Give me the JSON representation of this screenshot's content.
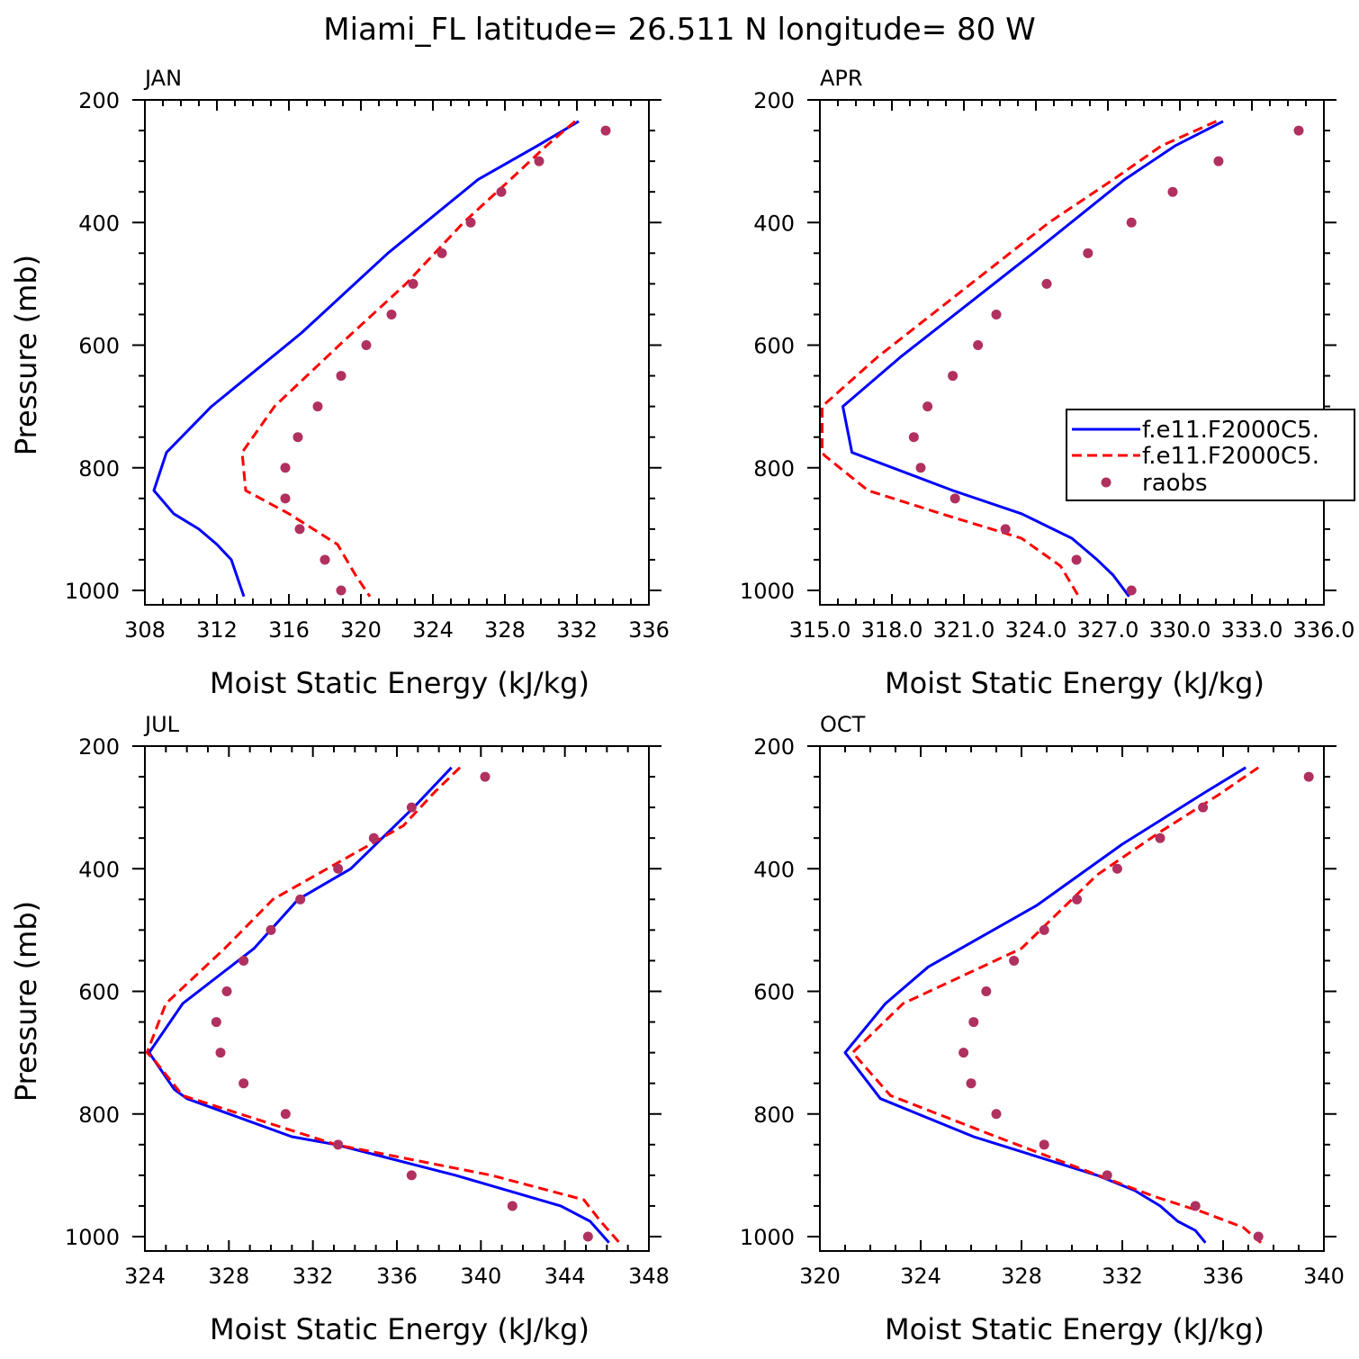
{
  "figure": {
    "title": "Miami_FL  latitude= 26.511 N longitude= 80 W"
  },
  "colors": {
    "model_a": "#0000ff",
    "model_b": "#ff0000",
    "raobs": "#b03060"
  },
  "chart_data": [
    {
      "type": "line",
      "panel": "JAN",
      "xlabel": "Moist Static Energy (kJ/kg)",
      "ylabel": "Pressure (mb)",
      "xlim": [
        308,
        336
      ],
      "xticks": [
        "308",
        "312",
        "316",
        "320",
        "324",
        "328",
        "332",
        "336"
      ],
      "ylim": [
        1000,
        200
      ],
      "yticks": [
        "200",
        "400",
        "600",
        "800",
        "1000"
      ],
      "series": [
        {
          "style": "solid",
          "x": [
            332.1,
            329.8,
            326.5,
            321.5,
            316.7,
            311.7,
            309.2,
            308.5,
            309.6,
            311.0,
            312.0,
            312.8,
            313.5
          ],
          "y": [
            235,
            275,
            330,
            450,
            580,
            700,
            775,
            837,
            875,
            900,
            925,
            950,
            1010
          ]
        },
        {
          "style": "dashed",
          "x": [
            331.9,
            330.3,
            328.3,
            325.7,
            322.5,
            318.8,
            315.2,
            314.0,
            313.4,
            313.6,
            316.0,
            318.7,
            319.7,
            320.5
          ],
          "y": [
            235,
            275,
            330,
            400,
            500,
            600,
            700,
            750,
            775,
            837,
            875,
            925,
            975,
            1010
          ]
        },
        {
          "style": "markers",
          "x": [
            333.6,
            329.9,
            327.8,
            326.1,
            324.5,
            322.9,
            321.7,
            320.3,
            318.9,
            317.6,
            316.5,
            315.8,
            315.8,
            316.6,
            318.0,
            318.9
          ],
          "y": [
            250,
            300,
            350,
            400,
            450,
            500,
            550,
            600,
            650,
            700,
            750,
            800,
            850,
            900,
            950,
            1000
          ]
        }
      ]
    },
    {
      "type": "line",
      "panel": "APR",
      "xlabel": "Moist Static Energy (kJ/kg)",
      "ylabel": "",
      "xlim": [
        315.0,
        337.0
      ],
      "xticks": [
        "315.0",
        "318.0",
        "321.0",
        "324.0",
        "327.0",
        "330.0",
        "333.0",
        "336.0"
      ],
      "ylim": [
        1000,
        200
      ],
      "yticks": [
        "200",
        "400",
        "600",
        "800",
        "1000"
      ],
      "legend": {
        "placement": "right",
        "entries": [
          "f.e11.F2000C5.",
          "f.e11.F2000C5.",
          "raobs"
        ]
      },
      "series": [
        {
          "style": "solid",
          "x": [
            332.6,
            330.5,
            328.3,
            324.3,
            318.5,
            316.0,
            316.4,
            320.8,
            323.8,
            326.0,
            327.1,
            327.8,
            328.5
          ],
          "y": [
            235,
            275,
            330,
            450,
            620,
            700,
            775,
            837,
            875,
            915,
            950,
            975,
            1010
          ]
        },
        {
          "style": "dashed",
          "x": [
            332.3,
            329.9,
            327.8,
            325.0,
            317.5,
            315.1,
            315.1,
            315.2,
            317.1,
            320.3,
            323.8,
            325.5,
            326.3
          ],
          "y": [
            235,
            275,
            330,
            400,
            620,
            700,
            775,
            780,
            837,
            875,
            915,
            960,
            1010
          ]
        },
        {
          "style": "markers",
          "x": [
            335.9,
            332.4,
            330.4,
            328.6,
            326.7,
            324.9,
            322.7,
            321.9,
            320.8,
            319.7,
            319.1,
            319.4,
            320.9,
            323.1,
            326.2,
            328.6
          ],
          "y": [
            250,
            300,
            350,
            400,
            450,
            500,
            550,
            600,
            650,
            700,
            750,
            800,
            850,
            900,
            950,
            1000
          ]
        }
      ]
    },
    {
      "type": "line",
      "panel": "JUL",
      "xlabel": "Moist Static Energy (kJ/kg)",
      "ylabel": "Pressure (mb)",
      "xlim": [
        324,
        348
      ],
      "xticks": [
        "324",
        "328",
        "332",
        "336",
        "340",
        "344",
        "348"
      ],
      "ylim": [
        1000,
        200
      ],
      "yticks": [
        "200",
        "400",
        "600",
        "800",
        "1000"
      ],
      "series": [
        {
          "style": "solid",
          "x": [
            338.6,
            336.8,
            333.8,
            331.3,
            329.2,
            325.8,
            324.2,
            325.4,
            326.0,
            331.0,
            333.1,
            338.8,
            343.8,
            345.2,
            346.1
          ],
          "y": [
            235,
            300,
            400,
            450,
            530,
            620,
            700,
            760,
            775,
            837,
            850,
            900,
            950,
            975,
            1010
          ]
        },
        {
          "style": "dashed",
          "x": [
            339.0,
            337.8,
            336.3,
            333.2,
            330.1,
            327.8,
            325.0,
            324.1,
            324.4,
            325.8,
            333.1,
            340.5,
            344.9,
            345.7,
            346.6
          ],
          "y": [
            235,
            275,
            330,
            390,
            450,
            530,
            620,
            700,
            710,
            770,
            850,
            900,
            940,
            975,
            1010
          ]
        },
        {
          "style": "markers",
          "x": [
            340.2,
            336.7,
            334.9,
            333.2,
            331.4,
            330.0,
            328.7,
            327.9,
            327.4,
            327.6,
            328.7,
            330.7,
            333.2,
            336.7,
            341.5,
            345.1
          ],
          "y": [
            250,
            300,
            350,
            400,
            450,
            500,
            550,
            600,
            650,
            700,
            750,
            800,
            850,
            900,
            950,
            1000
          ]
        }
      ]
    },
    {
      "type": "line",
      "panel": "OCT",
      "xlabel": "Moist Static Energy (kJ/kg)",
      "ylabel": "",
      "xlim": [
        320,
        340
      ],
      "xticks": [
        "320",
        "324",
        "328",
        "332",
        "336",
        "340"
      ],
      "ylim": [
        1000,
        200
      ],
      "yticks": [
        "200",
        "400",
        "600",
        "800",
        "1000"
      ],
      "series": [
        {
          "style": "solid",
          "x": [
            336.9,
            335.3,
            332.0,
            328.6,
            324.3,
            322.6,
            321.0,
            322.4,
            326.1,
            331.0,
            332.5,
            333.5,
            334.2,
            334.9,
            335.3
          ],
          "y": [
            235,
            275,
            360,
            460,
            560,
            620,
            700,
            775,
            837,
            900,
            925,
            950,
            975,
            990,
            1010
          ]
        },
        {
          "style": "dashed",
          "x": [
            337.4,
            335.8,
            333.5,
            331.0,
            328.0,
            323.3,
            321.3,
            322.8,
            327.0,
            330.4,
            333.3,
            335.2,
            336.8,
            337.5
          ],
          "y": [
            235,
            280,
            340,
            410,
            530,
            620,
            700,
            770,
            837,
            890,
            935,
            960,
            985,
            1010
          ]
        },
        {
          "style": "markers",
          "x": [
            339.4,
            335.2,
            333.5,
            331.8,
            330.2,
            328.9,
            327.7,
            326.6,
            326.1,
            325.7,
            326.0,
            327.0,
            328.9,
            331.4,
            334.9,
            337.4
          ],
          "y": [
            250,
            300,
            350,
            400,
            450,
            500,
            550,
            600,
            650,
            700,
            750,
            800,
            850,
            900,
            950,
            1000
          ]
        }
      ]
    }
  ]
}
